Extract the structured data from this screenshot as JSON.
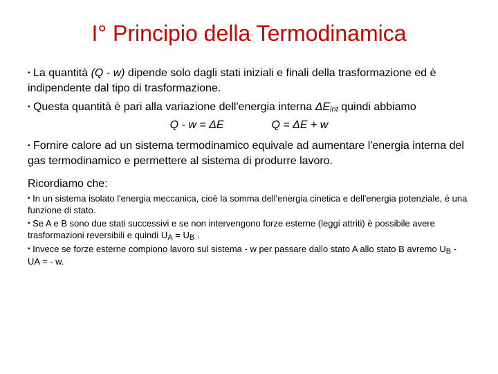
{
  "colors": {
    "title": "#cc0000",
    "body": "#000000",
    "background": "#ffffff"
  },
  "typography": {
    "title_fontsize": 32,
    "body_fontsize": 16,
    "small_fontsize": 13,
    "font_family": "Arial"
  },
  "title": "I° Principio della Termodinamica",
  "bullets": {
    "b1_pre": "La quantità ",
    "b1_italic": "(Q - w)",
    "b1_post": " dipende solo dagli stati iniziali e finali della trasformazione ed è indipendente dal tipo di trasformazione.",
    "b2_pre": "Questa quantità è pari alla variazione dell'energia interna ",
    "b2_delta": "Δ",
    "b2_E": "E",
    "b2_sub": "int",
    "b2_post": " quindi abbiamo",
    "formula1": "Q - w = ΔE",
    "formula2": "Q = ΔE + w",
    "b3": "Fornire calore ad un sistema termodinamico equivale ad aumentare l'energia interna del gas termodinamico e permettere al sistema di produrre lavoro."
  },
  "section": "Ricordiamo che:",
  "small": {
    "s1": "In un sistema isolato l'energia meccanica, cioè la somma dell'energia cinetica e dell'energia potenziale, è una funzione di stato.",
    "s2_pre": "Se A e B sono due stati successivi e se non intervengono forze esterne (leggi attriti) è possibile avere trasformazioni reversibili e quindi U",
    "s2_subA": "A",
    "s2_mid": " = U",
    "s2_subB": "B",
    "s2_post": " .",
    "s3_pre": "Invece se forze esterne compiono lavoro sul sistema  - w per passare dallo stato A allo stato B avremo U",
    "s3_subB": "B",
    "s3_mid": " - UA = - w."
  }
}
